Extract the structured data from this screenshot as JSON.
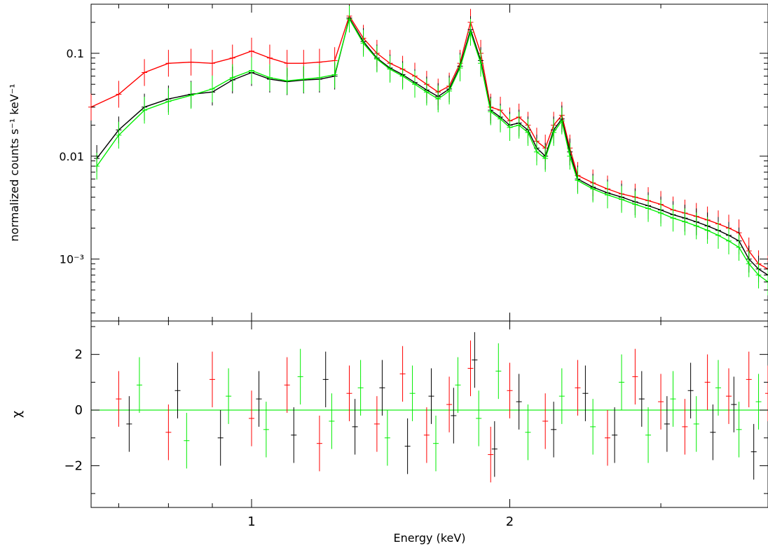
{
  "chart_data": [
    {
      "type": "scatter",
      "panel": "spectrum",
      "xlabel": "",
      "ylabel": "normalized counts s⁻¹ keV⁻¹",
      "xscale": "log",
      "yscale": "log",
      "xlim": [
        0.65,
        4.0
      ],
      "ylim": [
        0.00025,
        0.3
      ],
      "xticks": [
        {
          "value": 1,
          "label": "1"
        },
        {
          "value": 2,
          "label": "2"
        }
      ],
      "yticks": [
        {
          "value": 0.1,
          "label": "0.1"
        },
        {
          "value": 0.01,
          "label": "0.01"
        },
        {
          "value": 0.001,
          "label": "10⁻³"
        }
      ],
      "series": [
        {
          "color": "#ff0000",
          "x": [
            0.65,
            0.7,
            0.75,
            0.8,
            0.85,
            0.9,
            0.95,
            1.0,
            1.05,
            1.1,
            1.15,
            1.2,
            1.25,
            1.3,
            1.35,
            1.4,
            1.45,
            1.5,
            1.55,
            1.6,
            1.65,
            1.7,
            1.75,
            1.8,
            1.85,
            1.9,
            1.95,
            2.0,
            2.05,
            2.1,
            2.15,
            2.2,
            2.25,
            2.3,
            2.35,
            2.4,
            2.5,
            2.6,
            2.7,
            2.8,
            2.9,
            3.0,
            3.1,
            3.2,
            3.3,
            3.4,
            3.5,
            3.6,
            3.7,
            3.8,
            3.9,
            4.0
          ],
          "y": [
            0.03,
            0.04,
            0.065,
            0.08,
            0.082,
            0.08,
            0.09,
            0.105,
            0.09,
            0.08,
            0.08,
            0.082,
            0.085,
            0.23,
            0.14,
            0.1,
            0.08,
            0.07,
            0.06,
            0.05,
            0.042,
            0.048,
            0.08,
            0.2,
            0.1,
            0.03,
            0.028,
            0.022,
            0.024,
            0.02,
            0.014,
            0.012,
            0.02,
            0.025,
            0.012,
            0.0065,
            0.0055,
            0.0048,
            0.0043,
            0.004,
            0.0037,
            0.0034,
            0.003,
            0.0028,
            0.0026,
            0.0024,
            0.0022,
            0.002,
            0.0018,
            0.0012,
            0.0009,
            0.0008
          ]
        },
        {
          "color": "#000000",
          "x": [
            0.66,
            0.7,
            0.75,
            0.8,
            0.85,
            0.9,
            0.95,
            1.0,
            1.05,
            1.1,
            1.15,
            1.2,
            1.25,
            1.3,
            1.35,
            1.4,
            1.45,
            1.5,
            1.55,
            1.6,
            1.65,
            1.7,
            1.75,
            1.8,
            1.85,
            1.9,
            1.95,
            2.0,
            2.05,
            2.1,
            2.15,
            2.2,
            2.25,
            2.3,
            2.35,
            2.4,
            2.5,
            2.6,
            2.7,
            2.8,
            2.9,
            3.0,
            3.1,
            3.2,
            3.3,
            3.4,
            3.5,
            3.6,
            3.7,
            3.8,
            3.9,
            4.0
          ],
          "y": [
            0.0095,
            0.018,
            0.03,
            0.036,
            0.04,
            0.042,
            0.055,
            0.065,
            0.056,
            0.053,
            0.055,
            0.056,
            0.06,
            0.22,
            0.13,
            0.09,
            0.072,
            0.062,
            0.052,
            0.044,
            0.038,
            0.045,
            0.075,
            0.17,
            0.085,
            0.028,
            0.024,
            0.02,
            0.021,
            0.018,
            0.012,
            0.01,
            0.018,
            0.023,
            0.011,
            0.006,
            0.005,
            0.0044,
            0.004,
            0.0036,
            0.0033,
            0.003,
            0.0027,
            0.0025,
            0.0023,
            0.0021,
            0.0019,
            0.0017,
            0.0015,
            0.001,
            0.0008,
            0.0007
          ]
        },
        {
          "color": "#00ee00",
          "x": [
            0.66,
            0.7,
            0.75,
            0.8,
            0.85,
            0.9,
            0.95,
            1.0,
            1.05,
            1.1,
            1.15,
            1.2,
            1.25,
            1.3,
            1.35,
            1.4,
            1.45,
            1.5,
            1.55,
            1.6,
            1.65,
            1.7,
            1.75,
            1.8,
            1.85,
            1.9,
            1.95,
            2.0,
            2.05,
            2.1,
            2.15,
            2.2,
            2.25,
            2.3,
            2.35,
            2.4,
            2.5,
            2.6,
            2.7,
            2.8,
            2.9,
            3.0,
            3.1,
            3.2,
            3.3,
            3.4,
            3.5,
            3.6,
            3.7,
            3.8,
            3.9,
            4.0
          ],
          "y": [
            0.008,
            0.016,
            0.028,
            0.034,
            0.039,
            0.045,
            0.058,
            0.068,
            0.058,
            0.054,
            0.056,
            0.058,
            0.062,
            0.215,
            0.125,
            0.088,
            0.07,
            0.06,
            0.05,
            0.042,
            0.036,
            0.043,
            0.072,
            0.16,
            0.08,
            0.027,
            0.023,
            0.019,
            0.02,
            0.017,
            0.011,
            0.0095,
            0.017,
            0.022,
            0.01,
            0.0058,
            0.0048,
            0.0042,
            0.0038,
            0.0034,
            0.0031,
            0.0028,
            0.0025,
            0.0023,
            0.0021,
            0.0019,
            0.0017,
            0.0015,
            0.0013,
            0.0009,
            0.0007,
            0.0006
          ]
        }
      ]
    },
    {
      "type": "scatter",
      "panel": "residuals",
      "xlabel": "Energy (keV)",
      "ylabel": "χ",
      "xscale": "log",
      "xlim": [
        0.65,
        4.0
      ],
      "ylim": [
        -3.5,
        3.2
      ],
      "xticks": [
        {
          "value": 1,
          "label": "1"
        },
        {
          "value": 2,
          "label": "2"
        }
      ],
      "yticks": [
        {
          "value": 2,
          "label": "2"
        },
        {
          "value": 0,
          "label": "0"
        },
        {
          "value": -2,
          "label": "−2"
        }
      ],
      "zero_line": 0,
      "series": [
        {
          "color": "#ff0000",
          "x": [
            0.7,
            0.8,
            0.9,
            1.0,
            1.1,
            1.2,
            1.3,
            1.4,
            1.5,
            1.6,
            1.7,
            1.8,
            1.9,
            2.0,
            2.2,
            2.4,
            2.6,
            2.8,
            3.0,
            3.2,
            3.4,
            3.6,
            3.8,
            4.0
          ],
          "y": [
            0.4,
            -0.8,
            1.1,
            -0.3,
            0.9,
            -1.2,
            0.6,
            -0.5,
            1.3,
            -0.9,
            0.2,
            1.5,
            -1.6,
            0.7,
            -0.4,
            0.8,
            -1.0,
            1.2,
            0.3,
            -0.6,
            1.0,
            0.5,
            1.1,
            0.6
          ]
        },
        {
          "color": "#000000",
          "x": [
            0.72,
            0.82,
            0.92,
            1.02,
            1.12,
            1.22,
            1.32,
            1.42,
            1.52,
            1.62,
            1.72,
            1.82,
            1.92,
            2.05,
            2.25,
            2.45,
            2.65,
            2.85,
            3.05,
            3.25,
            3.45,
            3.65,
            3.85
          ],
          "y": [
            -0.5,
            0.7,
            -1.0,
            0.4,
            -0.9,
            1.1,
            -0.6,
            0.8,
            -1.3,
            0.5,
            -0.2,
            1.8,
            -1.4,
            0.3,
            -0.7,
            0.6,
            -0.9,
            0.4,
            -0.5,
            0.7,
            -0.8,
            0.2,
            -1.5
          ]
        },
        {
          "color": "#00ee00",
          "x": [
            0.74,
            0.84,
            0.94,
            1.04,
            1.14,
            1.24,
            1.34,
            1.44,
            1.54,
            1.64,
            1.74,
            1.84,
            1.94,
            2.1,
            2.3,
            2.5,
            2.7,
            2.9,
            3.1,
            3.3,
            3.5,
            3.7,
            3.9
          ],
          "y": [
            0.9,
            -1.1,
            0.5,
            -0.7,
            1.2,
            -0.4,
            0.8,
            -1.0,
            0.6,
            -1.2,
            0.9,
            -0.3,
            1.4,
            -0.8,
            0.5,
            -0.6,
            1.0,
            -0.9,
            0.4,
            -0.5,
            0.8,
            -0.7,
            0.3
          ]
        }
      ]
    }
  ]
}
